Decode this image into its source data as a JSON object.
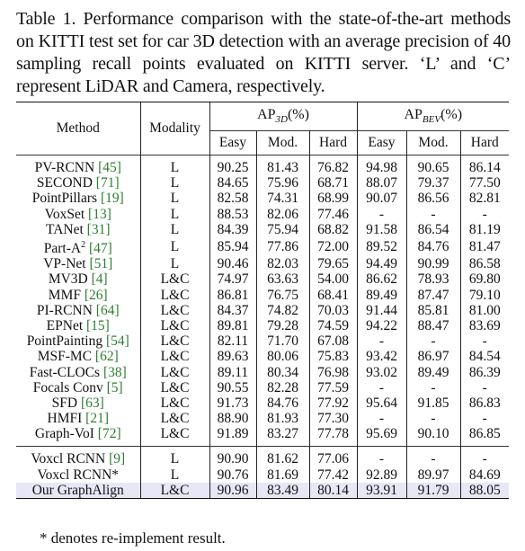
{
  "caption": "Table 1. Performance comparison with the state-of-the-art methods on KITTI test set for car 3D detection with an average precision of 40 sampling recall points evaluated on KITTI server. ‘L’ and ‘C’ represent LiDAR and Camera, respectively.",
  "headers": {
    "method": "Method",
    "modality": "Modality",
    "ap3d_prefix": "AP",
    "ap3d_sub": "3D",
    "ap3d_suffix": "(%)",
    "apbev_prefix": "AP",
    "apbev_sub": "BEV",
    "apbev_suffix": "(%)",
    "easy": "Easy",
    "mod": "Mod.",
    "hard": "Hard"
  },
  "rows": [
    {
      "name": "PV-RCNN ",
      "ref": "[45]",
      "sup": "",
      "modality": "L",
      "vals": [
        "90.25",
        "81.43",
        "76.82",
        "94.98",
        "90.65",
        "86.14"
      ],
      "bold": []
    },
    {
      "name": "SECOND ",
      "ref": "[71]",
      "sup": "",
      "modality": "L",
      "vals": [
        "84.65",
        "75.96",
        "68.71",
        "88.07",
        "79.37",
        "77.50"
      ],
      "bold": []
    },
    {
      "name": "PointPillars ",
      "ref": "[19]",
      "sup": "",
      "modality": "L",
      "vals": [
        "82.58",
        "74.31",
        "68.99",
        "90.07",
        "86.56",
        "82.81"
      ],
      "bold": []
    },
    {
      "name": "VoxSet ",
      "ref": "[13]",
      "sup": "",
      "modality": "L",
      "vals": [
        "88.53",
        "82.06",
        "77.46",
        "-",
        "-",
        "-"
      ],
      "bold": []
    },
    {
      "name": "TANet ",
      "ref": "[31]",
      "sup": "",
      "modality": "L",
      "vals": [
        "84.39",
        "75.94",
        "68.82",
        "91.58",
        "86.54",
        "81.19"
      ],
      "bold": []
    },
    {
      "name": "Part-A",
      "ref": "[47]",
      "sup": "2",
      "modality": "L",
      "vals": [
        "85.94",
        "77.86",
        "72.00",
        "89.52",
        "84.76",
        "81.47"
      ],
      "bold": []
    },
    {
      "name": "VP-Net ",
      "ref": "[51]",
      "sup": "",
      "modality": "L",
      "vals": [
        "90.46",
        "82.03",
        "79.65",
        "94.49",
        "90.99",
        "86.58"
      ],
      "bold": []
    },
    {
      "name": "MV3D ",
      "ref": "[4]",
      "sup": "",
      "modality": "L&C",
      "vals": [
        "74.97",
        "63.63",
        "54.00",
        "86.62",
        "78.93",
        "69.80"
      ],
      "bold": []
    },
    {
      "name": "MMF ",
      "ref": "[26]",
      "sup": "",
      "modality": "L&C",
      "vals": [
        "86.81",
        "76.75",
        "68.41",
        "89.49",
        "87.47",
        "79.10"
      ],
      "bold": []
    },
    {
      "name": "PI-RCNN ",
      "ref": "[64]",
      "sup": "",
      "modality": "L&C",
      "vals": [
        "84.37",
        "74.82",
        "70.03",
        "91.44",
        "85.81",
        "81.00"
      ],
      "bold": []
    },
    {
      "name": "EPNet ",
      "ref": "[15]",
      "sup": "",
      "modality": "L&C",
      "vals": [
        "89.81",
        "79.28",
        "74.59",
        "94.22",
        "88.47",
        "83.69"
      ],
      "bold": []
    },
    {
      "name": "PointPainting ",
      "ref": "[54]",
      "sup": "",
      "modality": "L&C",
      "vals": [
        "82.11",
        "71.70",
        "67.08",
        "-",
        "-",
        "-"
      ],
      "bold": []
    },
    {
      "name": "MSF-MC ",
      "ref": "[62]",
      "sup": "",
      "modality": "L&C",
      "vals": [
        "89.63",
        "80.06",
        "75.83",
        "93.42",
        "86.97",
        "84.54"
      ],
      "bold": []
    },
    {
      "name": "Fast-CLOCs ",
      "ref": "[38]",
      "sup": "",
      "modality": "L&C",
      "vals": [
        "89.11",
        "80.34",
        "76.98",
        "93.02",
        "89.49",
        "86.39"
      ],
      "bold": []
    },
    {
      "name": "Focals Conv ",
      "ref": "[5]",
      "sup": "",
      "modality": "L&C",
      "vals": [
        "90.55",
        "82.28",
        "77.59",
        "-",
        "-",
        "-"
      ],
      "bold": []
    },
    {
      "name": "SFD ",
      "ref": "[63]",
      "sup": "",
      "modality": "L&C",
      "vals": [
        "91.73",
        "84.76",
        "77.92",
        "95.64",
        "91.85",
        "86.83"
      ],
      "bold": [
        1,
        4
      ]
    },
    {
      "name": "HMFI ",
      "ref": "[21]",
      "sup": "",
      "modality": "L&C",
      "vals": [
        "88.90",
        "81.93",
        "77.30",
        "-",
        "-",
        "-"
      ],
      "bold": []
    },
    {
      "name": "Graph-VoI ",
      "ref": "[72]",
      "sup": "",
      "modality": "L&C",
      "vals": [
        "91.89",
        "83.27",
        "77.78",
        "95.69",
        "90.10",
        "86.85"
      ],
      "bold": [
        0,
        3
      ]
    }
  ],
  "rows_bottom": [
    {
      "name": "Voxcl RCNN ",
      "ref": "[9]",
      "sup": "",
      "modality": "L",
      "vals": [
        "90.90",
        "81.62",
        "77.06",
        "-",
        "-",
        "-"
      ],
      "bold": [],
      "hl": false
    },
    {
      "name": "Voxcl RCNN*",
      "ref": "",
      "sup": "",
      "modality": "L",
      "vals": [
        "90.76",
        "81.69",
        "77.42",
        "92.89",
        "89.97",
        "84.69"
      ],
      "bold": [],
      "hl": false
    },
    {
      "name": "Our GraphAlign",
      "ref": "",
      "sup": "",
      "modality": "L&C",
      "vals": [
        "90.96",
        "83.49",
        "80.14",
        "93.91",
        "91.79",
        "88.05"
      ],
      "bold": [
        2,
        5
      ],
      "hl": true
    }
  ],
  "footnote": "* denotes re-implement result.",
  "colors": {
    "citation": "#2e7d32",
    "highlight_row": "#e7e7f6"
  }
}
